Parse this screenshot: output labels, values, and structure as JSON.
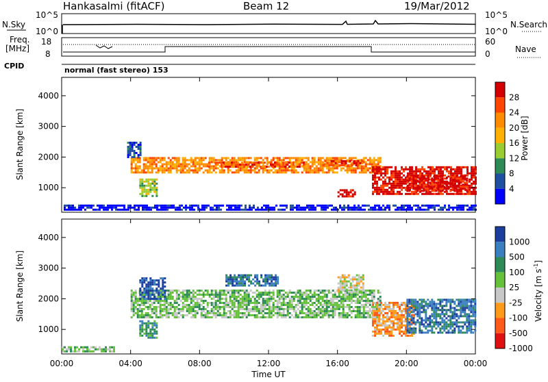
{
  "header": {
    "station": "Hankasalmi (fitACF)",
    "beam": "Beam 12",
    "date": "19/Mar/2012"
  },
  "top_panels": {
    "nsky_label": "N.Sky",
    "nsearch_label": "N.Search",
    "freq_label_1": "Freq.",
    "freq_label_2": "[MHz]",
    "nave_label": "Nave",
    "cpid_label": "CPID",
    "cpid_text": "normal (fast stereo) 153",
    "noise_ticks_left": [
      "10^5",
      "10^0"
    ],
    "noise_ticks_right": [
      "10^5",
      "10^0"
    ],
    "freq_ticks": [
      "18",
      "8"
    ],
    "nave_ticks": [
      "60",
      "0"
    ]
  },
  "colorbars": {
    "power": {
      "label": "Power [dB]",
      "ticks": [
        "28",
        "24",
        "20",
        "16",
        "12",
        "8",
        "4"
      ],
      "colors": [
        "#d40000",
        "#ff4500",
        "#ff8c00",
        "#ffb000",
        "#9acd32",
        "#2e8b57",
        "#1e4fa0",
        "#0000ff"
      ]
    },
    "velocity": {
      "label": "Velocity [m s",
      "label_sup": "-1",
      "label_end": "]",
      "ticks": [
        "1000",
        "500",
        "100",
        "25",
        "-25",
        "-100",
        "-500",
        "-1000"
      ],
      "colors": [
        "#1c3f9e",
        "#3a7fc0",
        "#2e8b57",
        "#66c23a",
        "#c8c8c8",
        "#ff9a1a",
        "#ff5a1a",
        "#e01010"
      ]
    }
  },
  "chart_data": [
    {
      "type": "heatmap",
      "title": "Power",
      "ylabel": "Slant Range [km]",
      "xlabel": "Time UT",
      "x_ticks": [
        "00:00",
        "04:00",
        "08:00",
        "12:00",
        "16:00",
        "20:00",
        "00:00"
      ],
      "y_ticks": [
        1000,
        2000,
        3000,
        4000
      ],
      "ylim": [
        200,
        4600
      ],
      "xlim_hours": [
        0,
        24
      ],
      "regions": [
        {
          "t0": 4.0,
          "t1": 18.5,
          "r0": 1500,
          "r1": 2000,
          "level": 5
        },
        {
          "t0": 8.5,
          "t1": 14.0,
          "r0": 1650,
          "r1": 1850,
          "level": 6
        },
        {
          "t0": 15.0,
          "t1": 17.5,
          "r0": 1700,
          "r1": 1900,
          "level": 6
        },
        {
          "t0": 4.5,
          "t1": 5.5,
          "r0": 700,
          "r1": 1300,
          "level": 3
        },
        {
          "t0": 16.0,
          "t1": 17.0,
          "r0": 700,
          "r1": 950,
          "level": 7
        },
        {
          "t0": 18.0,
          "t1": 24.0,
          "r0": 800,
          "r1": 1700,
          "level": 7
        },
        {
          "t0": 20.0,
          "t1": 23.5,
          "r0": 900,
          "r1": 1400,
          "level": 7
        },
        {
          "t0": 3.8,
          "t1": 4.6,
          "r0": 2000,
          "r1": 2500,
          "level": 1
        },
        {
          "t0": 0.0,
          "t1": 24.0,
          "r0": 250,
          "r1": 450,
          "level": 0
        }
      ]
    },
    {
      "type": "heatmap",
      "title": "Velocity",
      "ylabel": "Slant Range [km]",
      "xlabel": "Time UT",
      "x_ticks": [
        "00:00",
        "04:00",
        "08:00",
        "12:00",
        "16:00",
        "20:00",
        "00:00"
      ],
      "y_ticks": [
        1000,
        2000,
        3000,
        4000
      ],
      "ylim": [
        200,
        4600
      ],
      "xlim_hours": [
        0,
        24
      ],
      "regions": [
        {
          "t0": 4.0,
          "t1": 18.5,
          "r0": 1400,
          "r1": 2300,
          "level": 4
        },
        {
          "t0": 4.5,
          "t1": 6.0,
          "r0": 2000,
          "r1": 2700,
          "level": 7
        },
        {
          "t0": 9.5,
          "t1": 12.5,
          "r0": 2400,
          "r1": 2800,
          "level": 6
        },
        {
          "t0": 4.5,
          "t1": 5.5,
          "r0": 700,
          "r1": 1300,
          "level": 5
        },
        {
          "t0": 18.0,
          "t1": 20.5,
          "r0": 800,
          "r1": 1900,
          "level": 2
        },
        {
          "t0": 20.0,
          "t1": 24.0,
          "r0": 900,
          "r1": 2000,
          "level": 6
        },
        {
          "t0": 16.0,
          "t1": 17.5,
          "r0": 2200,
          "r1": 2800,
          "level": 3
        },
        {
          "t0": 0.0,
          "t1": 3.0,
          "r0": 250,
          "r1": 450,
          "level": 4
        }
      ]
    }
  ]
}
